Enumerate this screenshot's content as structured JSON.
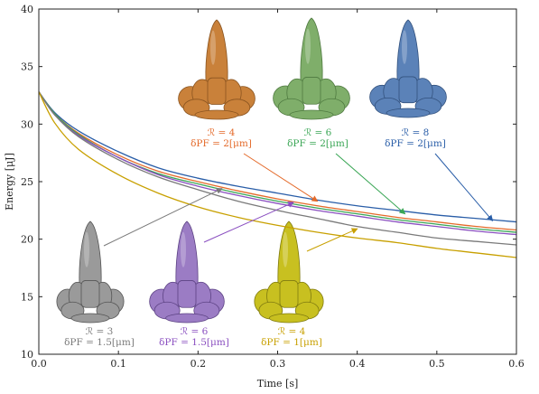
{
  "chart_data": {
    "type": "line",
    "title": "",
    "xlabel": "Time [s]",
    "ylabel": "Energy [μJ]",
    "xlim": [
      0.0,
      0.6
    ],
    "ylim": [
      10,
      40
    ],
    "xticks": [
      0.0,
      0.1,
      0.2,
      0.3,
      0.4,
      0.5,
      0.6
    ],
    "xtick_labels": [
      "0.0",
      "0.1",
      "0.2",
      "0.3",
      "0.4",
      "0.5",
      "0.6"
    ],
    "yticks": [
      10,
      15,
      20,
      25,
      30,
      35,
      40
    ],
    "ytick_labels": [
      "10",
      "15",
      "20",
      "25",
      "30",
      "35",
      "40"
    ],
    "grid": false,
    "x": [
      0.0,
      0.02,
      0.05,
      0.1,
      0.15,
      0.2,
      0.25,
      0.3,
      0.35,
      0.4,
      0.45,
      0.5,
      0.55,
      0.6
    ],
    "series": [
      {
        "color": "#2a5ea8",
        "values": [
          32.8,
          31.0,
          29.4,
          27.6,
          26.2,
          25.3,
          24.6,
          24.0,
          23.4,
          22.9,
          22.5,
          22.1,
          21.8,
          21.5
        ]
      },
      {
        "color": "#e46a2a",
        "values": [
          32.8,
          30.9,
          29.2,
          27.3,
          25.9,
          25.0,
          24.2,
          23.5,
          22.9,
          22.4,
          21.9,
          21.5,
          21.1,
          20.8
        ]
      },
      {
        "color": "#3aa655",
        "values": [
          32.8,
          30.9,
          29.1,
          27.1,
          25.7,
          24.8,
          24.0,
          23.3,
          22.7,
          22.2,
          21.7,
          21.3,
          20.9,
          20.6
        ]
      },
      {
        "color": "#8a4fc0",
        "values": [
          32.8,
          30.8,
          29.0,
          27.1,
          25.6,
          24.6,
          23.8,
          23.1,
          22.5,
          22.0,
          21.5,
          21.1,
          20.7,
          20.4
        ]
      },
      {
        "color": "#7a7a7a",
        "values": [
          32.8,
          30.8,
          28.9,
          26.9,
          25.4,
          24.3,
          23.3,
          22.5,
          21.8,
          21.1,
          20.6,
          20.1,
          19.8,
          19.5
        ]
      },
      {
        "color": "#c8a000",
        "values": [
          32.8,
          30.1,
          27.8,
          25.6,
          24.0,
          22.8,
          21.9,
          21.2,
          20.6,
          20.1,
          19.7,
          19.2,
          18.8,
          18.4
        ]
      }
    ],
    "annotations": [
      {
        "label_r": "ℛ = 4",
        "label_d": "δPF = 2[μm]",
        "color": "#e46a2a",
        "arrow_to": [
          0.35,
          23.3
        ],
        "thumb_fill": "#c9813a",
        "thumb_edge": "#8a5420"
      },
      {
        "label_r": "ℛ = 6",
        "label_d": "δPF = 2[μm]",
        "color": "#3aa655",
        "arrow_to": [
          0.46,
          22.2
        ],
        "thumb_fill": "#7fae6a",
        "thumb_edge": "#4f7a40"
      },
      {
        "label_r": "ℛ = 8",
        "label_d": "δPF = 2[μm]",
        "color": "#2a5ea8",
        "arrow_to": [
          0.57,
          21.6
        ],
        "thumb_fill": "#5b82b8",
        "thumb_edge": "#33527e"
      },
      {
        "label_r": "ℛ = 3",
        "label_d": "δPF = 1.5[μm]",
        "color": "#7a7a7a",
        "arrow_to": [
          0.23,
          24.4
        ],
        "thumb_fill": "#9a9a9a",
        "thumb_edge": "#555555"
      },
      {
        "label_r": "ℛ = 6",
        "label_d": "δPF = 1.5[μm]",
        "color": "#8a4fc0",
        "arrow_to": [
          0.32,
          23.2
        ],
        "thumb_fill": "#9b7cc4",
        "thumb_edge": "#5d4384"
      },
      {
        "label_r": "ℛ = 4",
        "label_d": "δPF = 1[μm]",
        "color": "#c8a000",
        "arrow_to": [
          0.4,
          20.9
        ],
        "thumb_fill": "#c8c020",
        "thumb_edge": "#7f7a10"
      }
    ]
  }
}
